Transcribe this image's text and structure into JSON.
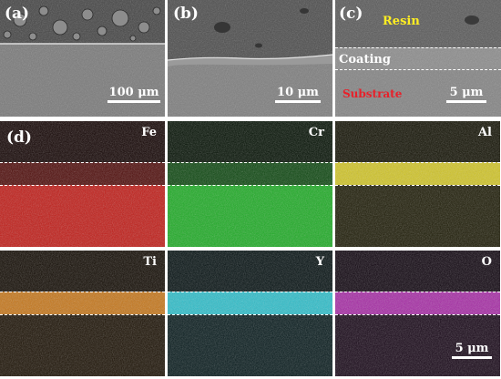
{
  "top_row": {
    "panel_a": {
      "label": "(a)",
      "scale_bar": "100 μm"
    },
    "panel_b": {
      "label": "(b)",
      "scale_bar": "10 μm"
    },
    "panel_c": {
      "label": "(c)",
      "scale_bar": "5 μm",
      "annotations": {
        "resin": "Resin",
        "coating": "Coating",
        "substrate": "Substrate"
      },
      "annotation_colors": {
        "resin": "#ffee22",
        "coating": "#ffffff",
        "substrate": "#e8202a"
      }
    }
  },
  "eds_maps": {
    "figure_label": "(d)",
    "scale_bar": "5 μm",
    "elements": [
      {
        "symbol": "Fe",
        "color": "#e0201a",
        "enriched": "substrate"
      },
      {
        "symbol": "Cr",
        "color": "#22c82a",
        "enriched": "substrate"
      },
      {
        "symbol": "Al",
        "color": "#e6d82a",
        "enriched": "coating"
      },
      {
        "symbol": "Ti",
        "color": "#d9821c",
        "enriched": "coating"
      },
      {
        "symbol": "Y",
        "color": "#32d0de",
        "enriched": "coating"
      },
      {
        "symbol": "O",
        "color": "#b730b6",
        "enriched": "coating"
      }
    ]
  }
}
